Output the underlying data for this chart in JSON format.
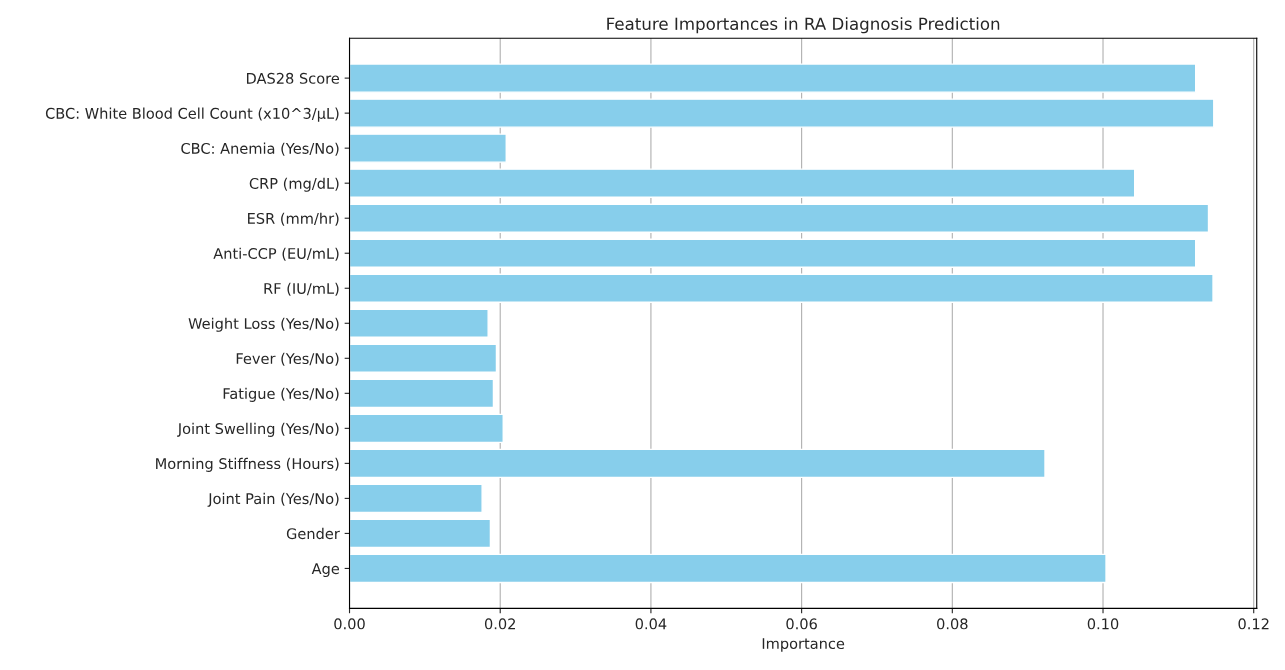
{
  "chart_data": {
    "type": "bar",
    "orientation": "horizontal",
    "title": "Feature Importances in RA Diagnosis Prediction",
    "xlabel": "Importance",
    "categories": [
      "DAS28 Score",
      "CBC: White Blood Cell Count (x10^3/µL)",
      "CBC: Anemia (Yes/No)",
      "CRP (mg/dL)",
      "ESR (mm/hr)",
      "Anti-CCP (EU/mL)",
      "RF (IU/mL)",
      "Weight Loss (Yes/No)",
      "Fever (Yes/No)",
      "Fatigue (Yes/No)",
      "Joint Swelling (Yes/No)",
      "Morning Stiffness (Hours)",
      "Joint Pain (Yes/No)",
      "Gender",
      "Age"
    ],
    "values": [
      0.1123,
      0.1147,
      0.0208,
      0.1042,
      0.114,
      0.1123,
      0.1146,
      0.0184,
      0.0195,
      0.0191,
      0.0204,
      0.0923,
      0.0176,
      0.0187,
      0.1004
    ],
    "color": "#87ceeb",
    "xlim": [
      0,
      0.1204
    ],
    "xticks": [
      {
        "value": 0,
        "label": "0.00"
      },
      {
        "value": 0.02,
        "label": "0.02"
      },
      {
        "value": 0.04,
        "label": "0.04"
      },
      {
        "value": 0.06,
        "label": "0.06"
      },
      {
        "value": 0.08,
        "label": "0.08"
      },
      {
        "value": 0.1,
        "label": "0.10"
      },
      {
        "value": 0.12,
        "label": "0.12"
      }
    ],
    "grid": "x"
  }
}
